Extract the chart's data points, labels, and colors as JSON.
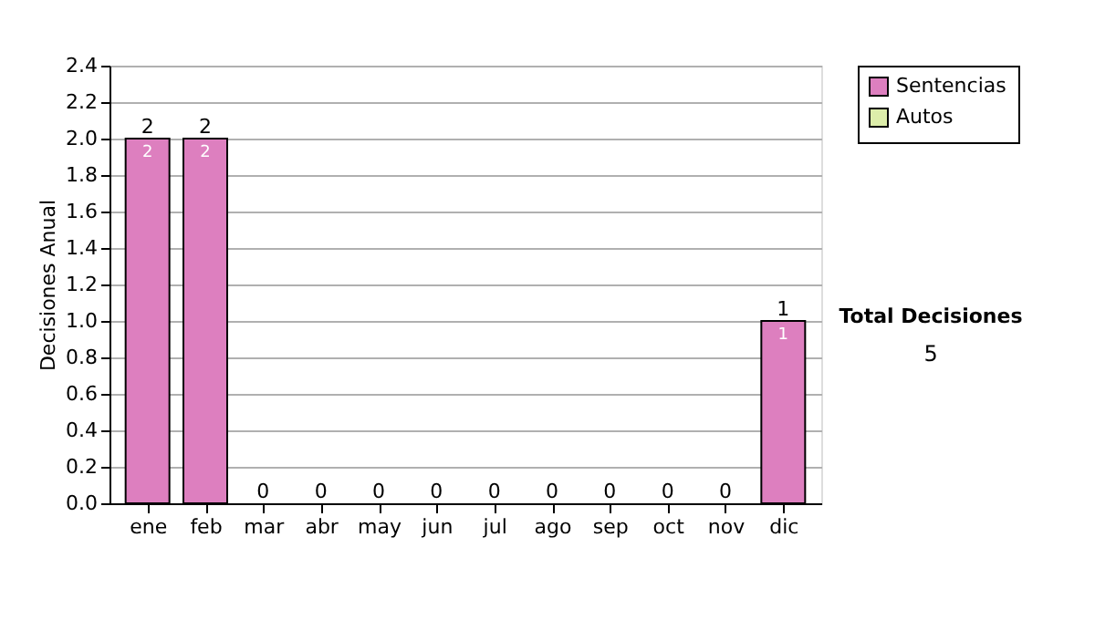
{
  "chart_data": {
    "type": "bar",
    "stacked": true,
    "ylabel": "Decisiones Anual",
    "categories": [
      "ene",
      "feb",
      "mar",
      "abr",
      "may",
      "jun",
      "jul",
      "ago",
      "sep",
      "oct",
      "nov",
      "dic"
    ],
    "series": [
      {
        "name": "Sentencias",
        "color": "#dd7fbf",
        "values": [
          2,
          2,
          0,
          0,
          0,
          0,
          0,
          0,
          0,
          0,
          0,
          1
        ],
        "value_labels": [
          "2",
          "2",
          null,
          null,
          null,
          null,
          null,
          null,
          null,
          null,
          null,
          "1"
        ]
      },
      {
        "name": "Autos",
        "color": "#ddeeaa",
        "values": [
          0,
          0,
          0,
          0,
          0,
          0,
          0,
          0,
          0,
          0,
          0,
          0
        ]
      }
    ],
    "totals": [
      "2",
      "2",
      "0",
      "0",
      "0",
      "0",
      "0",
      "0",
      "0",
      "0",
      "0",
      "1"
    ],
    "ylim": [
      0,
      2.4
    ],
    "yticks": [
      {
        "value": 0,
        "label": "0.0"
      },
      0.2,
      0.4,
      0.6,
      0.8,
      {
        "value": 1,
        "label": "1.0"
      },
      1.2,
      1.4,
      1.6,
      1.8,
      {
        "value": 2,
        "label": "2.0"
      },
      2.2,
      2.4
    ],
    "grid": "y",
    "legend": "right",
    "annotations": [
      "Total Decisiones",
      "5"
    ]
  }
}
